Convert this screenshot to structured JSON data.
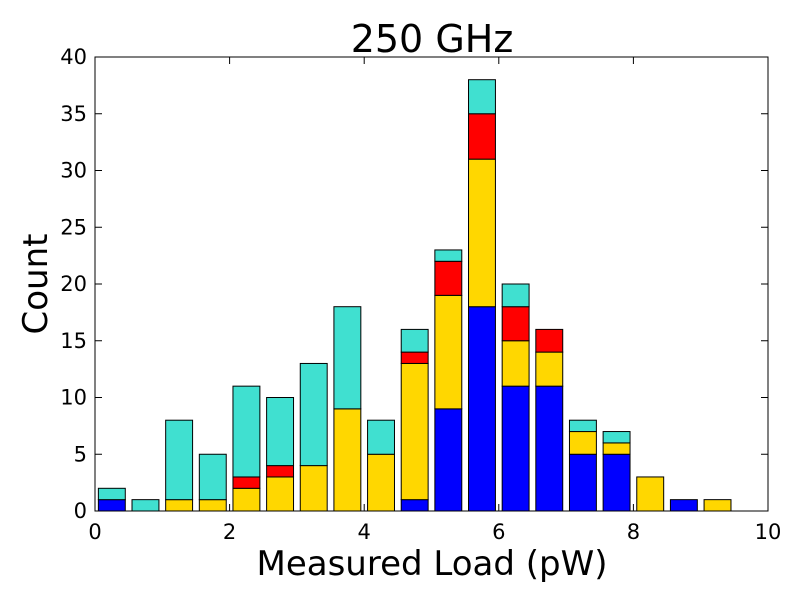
{
  "chart_data": {
    "type": "bar",
    "title": "250 GHz",
    "xlabel": "Measured Load (pW)",
    "ylabel": "Count",
    "xlim": [
      0,
      10
    ],
    "ylim": [
      0,
      40
    ],
    "xticks": [
      "0",
      "2",
      "4",
      "6",
      "8",
      "10"
    ],
    "yticks": [
      "0",
      "5",
      "10",
      "15",
      "20",
      "25",
      "30",
      "35",
      "40"
    ],
    "grid": false,
    "legend": "none",
    "stacked": true,
    "bar_width": 0.4,
    "x": [
      0.25,
      0.75,
      1.25,
      1.75,
      2.25,
      2.75,
      3.25,
      3.75,
      4.25,
      4.75,
      5.25,
      5.75,
      6.25,
      6.75,
      7.25,
      7.75,
      8.25,
      8.75,
      9.25
    ],
    "series": [
      {
        "color": "#0000ff",
        "values": [
          1,
          0,
          0,
          0,
          0,
          0,
          0,
          0,
          0,
          1,
          9,
          18,
          11,
          11,
          5,
          5,
          0,
          1,
          0
        ]
      },
      {
        "color": "#ffd700",
        "values": [
          0,
          0,
          1,
          1,
          2,
          3,
          4,
          9,
          5,
          12,
          10,
          13,
          4,
          3,
          2,
          1,
          3,
          0,
          1
        ]
      },
      {
        "color": "#ff0000",
        "values": [
          0,
          0,
          0,
          0,
          1,
          1,
          0,
          0,
          0,
          1,
          3,
          4,
          3,
          2,
          0,
          0,
          0,
          0,
          0
        ]
      },
      {
        "color": "#40e0d0",
        "values": [
          1,
          1,
          7,
          4,
          8,
          6,
          9,
          9,
          3,
          2,
          1,
          3,
          2,
          0,
          1,
          1,
          0,
          0,
          0
        ]
      }
    ]
  }
}
